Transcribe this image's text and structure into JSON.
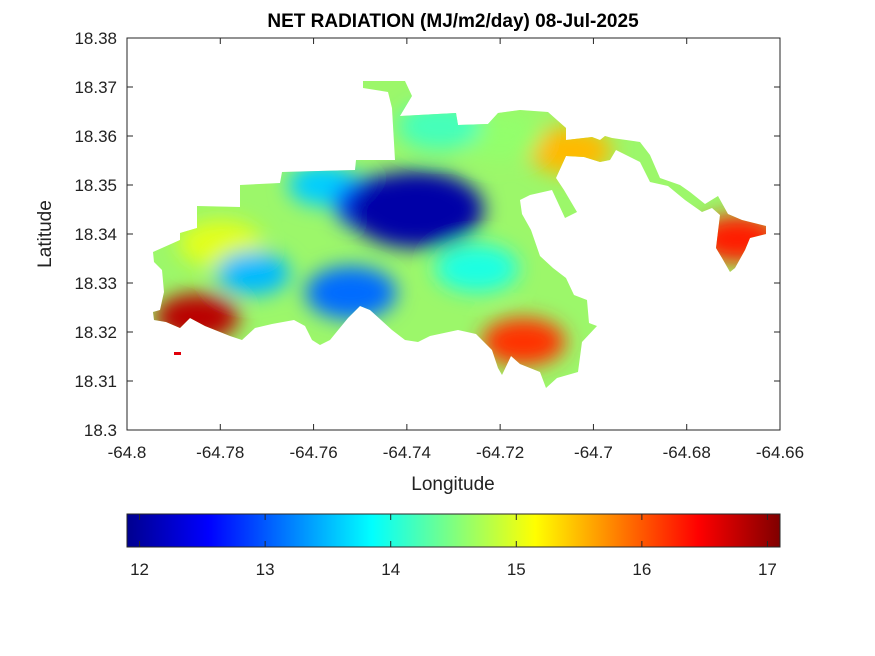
{
  "chart_data": {
    "type": "heatmap",
    "title": "NET RADIATION (MJ/m2/day) 08-Jul-2025",
    "xlabel": "Longitude",
    "ylabel": "Latitude",
    "xlim": [
      -64.8,
      -64.66
    ],
    "ylim": [
      18.3,
      18.38
    ],
    "x_ticks": [
      "-64.8",
      "-64.78",
      "-64.76",
      "-64.74",
      "-64.72",
      "-64.7",
      "-64.68",
      "-64.66"
    ],
    "y_ticks": [
      "18.3",
      "18.31",
      "18.32",
      "18.33",
      "18.34",
      "18.35",
      "18.36",
      "18.37",
      "18.38"
    ],
    "colormap": "jet",
    "colorbar": {
      "range": [
        11.9,
        17.1
      ],
      "ticks": [
        "12",
        "13",
        "14",
        "15",
        "16",
        "17"
      ],
      "orientation": "horizontal"
    },
    "value_regions": [
      {
        "lon": -64.738,
        "lat": 18.345,
        "value": 12.1
      },
      {
        "lon": -64.745,
        "lat": 18.346,
        "value": 12.9
      },
      {
        "lon": -64.752,
        "lat": 18.328,
        "value": 13.1
      },
      {
        "lon": -64.773,
        "lat": 18.332,
        "value": 13.5
      },
      {
        "lon": -64.758,
        "lat": 18.35,
        "value": 13.6
      },
      {
        "lon": -64.725,
        "lat": 18.333,
        "value": 14.0
      },
      {
        "lon": -64.733,
        "lat": 18.362,
        "value": 14.2
      },
      {
        "lon": -64.72,
        "lat": 18.36,
        "value": 14.6
      },
      {
        "lon": -64.78,
        "lat": 18.338,
        "value": 15.0
      },
      {
        "lon": -64.705,
        "lat": 18.357,
        "value": 15.5
      },
      {
        "lon": -64.715,
        "lat": 18.318,
        "value": 16.2
      },
      {
        "lon": -64.785,
        "lat": 18.323,
        "value": 16.8
      },
      {
        "lon": -64.669,
        "lat": 18.339,
        "value": 16.3
      }
    ]
  }
}
